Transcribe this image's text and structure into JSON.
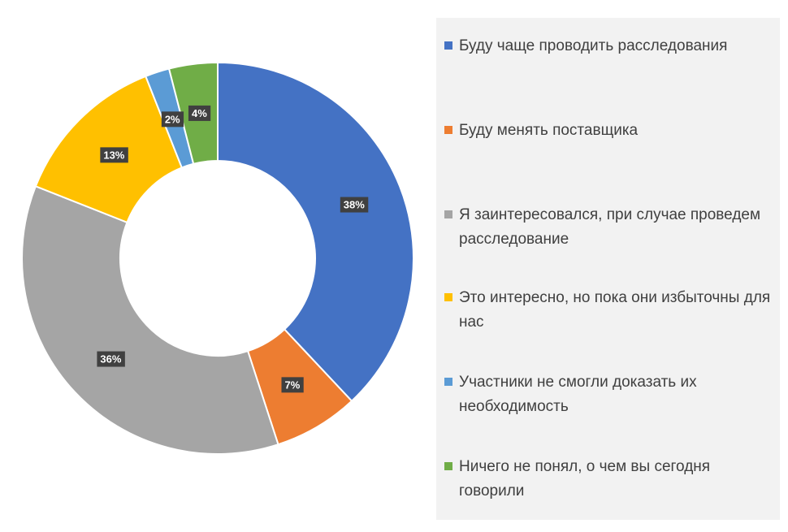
{
  "chart_data": {
    "type": "pie",
    "variant": "donut",
    "categories": [
      "Буду чаще проводить расследования",
      "Буду менять поставщика",
      "Я заинтересовался, при случае проведем расследование",
      "Это интересно, но пока они избыточны для нас",
      "Участники не смогли доказать их необходимость",
      "Ничего не понял, о чем вы сегодня говорили"
    ],
    "values": [
      38,
      7,
      36,
      13,
      2,
      4
    ],
    "data_labels": [
      "38%",
      "7%",
      "36%",
      "13%",
      "2%",
      "4%"
    ],
    "colors": [
      "#4472c4",
      "#ed7d31",
      "#a5a5a5",
      "#ffc000",
      "#5b9bd5",
      "#70ad47"
    ],
    "legend_position": "right",
    "title": ""
  },
  "legend": {
    "items": [
      {
        "label": "Буду чаще проводить расследования",
        "color": "#4472c4"
      },
      {
        "label": "Буду менять поставщика",
        "color": "#ed7d31"
      },
      {
        "label": "Я заинтересовался, при случае проведем расследование",
        "color": "#a5a5a5"
      },
      {
        "label": "Это интересно, но пока они избыточны для нас",
        "color": "#ffc000"
      },
      {
        "label": "Участники не смогли доказать их необходимость",
        "color": "#5b9bd5"
      },
      {
        "label": "Ничего не понял, о чем вы сегодня говорили",
        "color": "#70ad47"
      }
    ]
  }
}
